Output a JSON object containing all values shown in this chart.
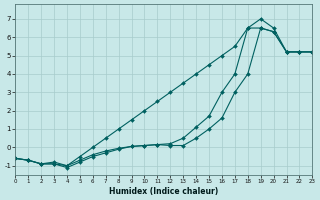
{
  "xlabel": "Humidex (Indice chaleur)",
  "bg_color": "#c8e8e8",
  "grid_color": "#a8cccc",
  "line_color": "#006060",
  "xlim": [
    0,
    23
  ],
  "ylim": [
    -1.5,
    7.8
  ],
  "yticks": [
    -1,
    0,
    1,
    2,
    3,
    4,
    5,
    6,
    7
  ],
  "xticks": [
    0,
    1,
    2,
    3,
    4,
    5,
    6,
    7,
    8,
    9,
    10,
    11,
    12,
    13,
    14,
    15,
    16,
    17,
    18,
    19,
    20,
    21,
    22,
    23
  ],
  "line_steep_x": [
    0,
    1,
    2,
    3,
    4,
    5,
    6,
    7,
    8,
    9,
    10,
    11,
    12,
    13,
    14,
    15,
    16,
    17,
    18,
    19,
    20,
    21,
    22,
    23
  ],
  "line_steep_y": [
    -0.6,
    -0.7,
    -0.9,
    -0.8,
    -1.0,
    -0.5,
    0.0,
    0.5,
    1.0,
    1.5,
    2.0,
    2.5,
    3.0,
    3.5,
    4.0,
    4.5,
    5.0,
    5.5,
    6.5,
    7.0,
    6.5,
    5.2,
    5.2,
    5.2
  ],
  "line_mid_x": [
    0,
    1,
    2,
    3,
    4,
    5,
    6,
    7,
    8,
    9,
    10,
    11,
    12,
    13,
    14,
    15,
    16,
    17,
    18,
    19,
    20,
    21,
    22,
    23
  ],
  "line_mid_y": [
    -0.6,
    -0.7,
    -0.9,
    -0.9,
    -1.0,
    -0.7,
    -0.4,
    -0.2,
    -0.05,
    0.05,
    0.1,
    0.15,
    0.2,
    0.5,
    1.1,
    1.7,
    3.0,
    4.0,
    6.5,
    6.5,
    6.3,
    5.2,
    5.2,
    5.2
  ],
  "line_flat_x": [
    0,
    1,
    2,
    3,
    4,
    5,
    6,
    7,
    8,
    9,
    10,
    11,
    12,
    13,
    14,
    15,
    16,
    17,
    18,
    19,
    20,
    21,
    22,
    23
  ],
  "line_flat_y": [
    -0.6,
    -0.7,
    -0.9,
    -0.9,
    -1.1,
    -0.8,
    -0.5,
    -0.3,
    -0.1,
    0.05,
    0.1,
    0.15,
    0.1,
    0.1,
    0.5,
    1.0,
    1.6,
    3.0,
    4.0,
    6.5,
    6.3,
    5.2,
    5.2,
    5.2
  ]
}
